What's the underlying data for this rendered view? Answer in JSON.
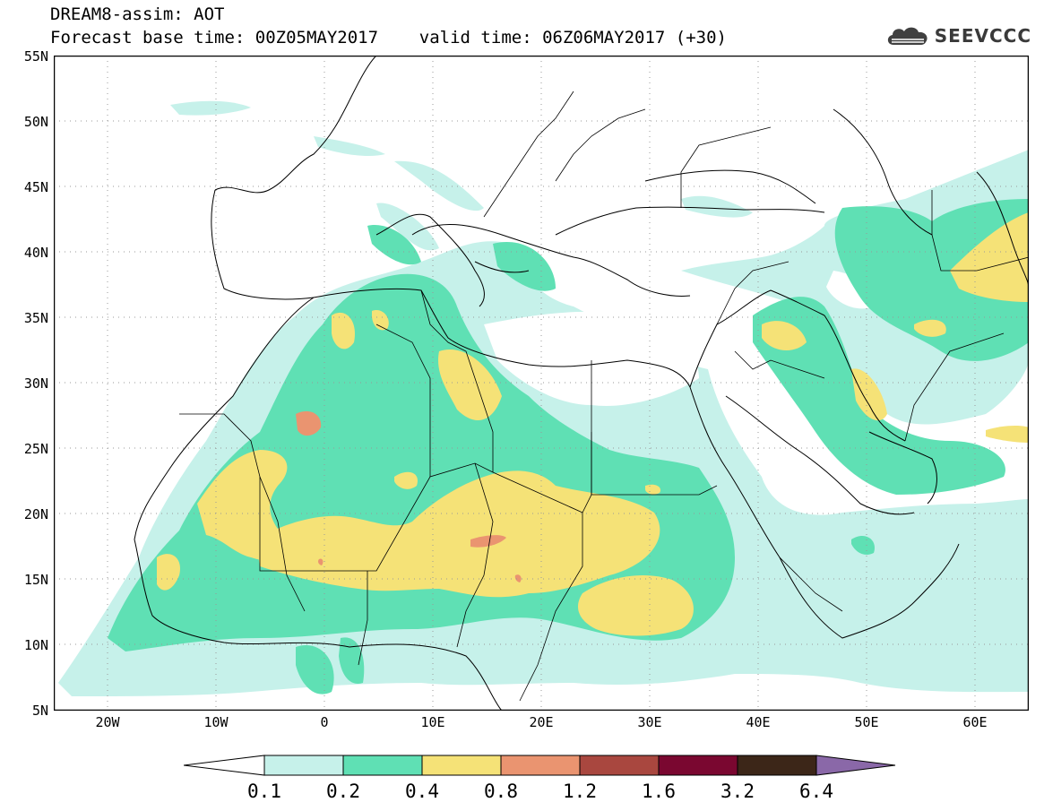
{
  "header": {
    "title": "DREAM8-assim: AOT",
    "subtitle": "Forecast base time: 00Z05MAY2017    valid time: 06Z06MAY2017 (+30)"
  },
  "logo": {
    "text": "SEEVCCC",
    "icon": "cloud-icon"
  },
  "map": {
    "variable": "Aerosol optical thickness",
    "lon_range": [
      -25,
      65
    ],
    "lat_range": [
      5,
      55
    ],
    "lat_labels": [
      "55N",
      "50N",
      "45N",
      "40N",
      "35N",
      "30N",
      "25N",
      "20N",
      "15N",
      "10N",
      "5N"
    ],
    "lon_labels": [
      "20W",
      "10W",
      "0",
      "10E",
      "20E",
      "30E",
      "40E",
      "50E",
      "60E"
    ],
    "gridlines": "dotted"
  },
  "colorbar": {
    "labels": [
      "0.1",
      "0.2",
      "0.4",
      "0.8",
      "1.2",
      "1.6",
      "3.2",
      "6.4"
    ],
    "colors": [
      "#ffffff",
      "#c6f1ea",
      "#5fe0b4",
      "#f5e277",
      "#ea9470",
      "#a9473f",
      "#7a0730",
      "#3c2618",
      "#8a68a8"
    ],
    "extend": "both"
  }
}
